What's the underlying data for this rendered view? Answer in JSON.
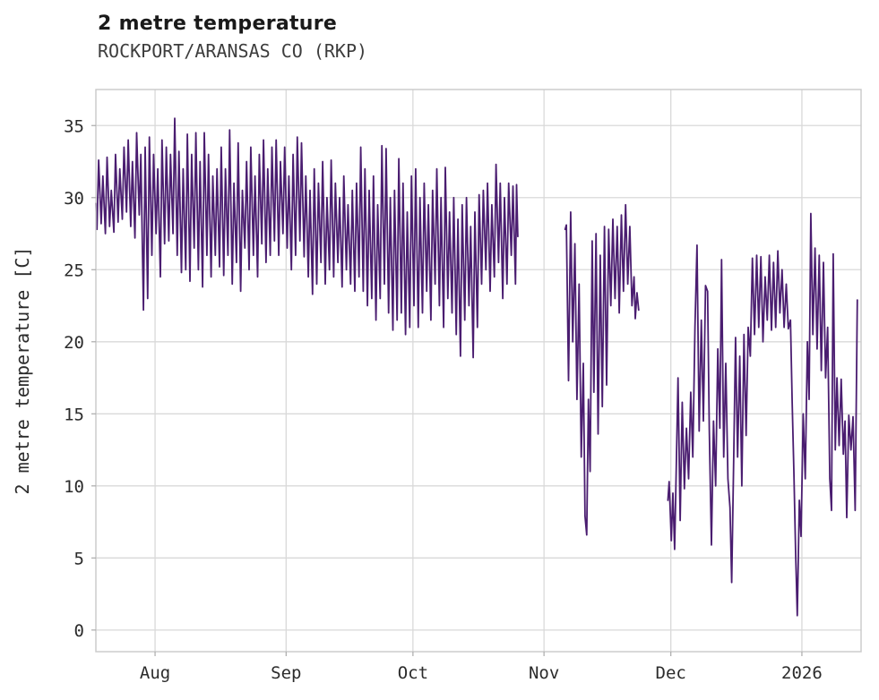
{
  "header": {
    "title": "2 metre temperature",
    "subtitle": "ROCKPORT/ARANSAS CO (RKP)"
  },
  "chart_data": {
    "type": "line",
    "title": "2 metre temperature",
    "subtitle": "ROCKPORT/ARANSAS CO (RKP)",
    "xlabel": "",
    "ylabel": "2 metre temperature [C]",
    "line_color": "#4a1d70",
    "grid": true,
    "grid_color": "#d9d9d9",
    "border_color": "#c9c9c9",
    "ylim": [
      -1.5,
      37.5
    ],
    "yticks": [
      0,
      5,
      10,
      15,
      20,
      25,
      30,
      35
    ],
    "xlim_days": [
      0,
      181
    ],
    "x_unit_note": "x values are days from left edge of plotted range (mid-July)",
    "xticks": [
      {
        "day": 14,
        "label": "Aug"
      },
      {
        "day": 45,
        "label": "Sep"
      },
      {
        "day": 75,
        "label": "Oct"
      },
      {
        "day": 106,
        "label": "Nov"
      },
      {
        "day": 136,
        "label": "Dec"
      },
      {
        "day": 167,
        "label": "2026"
      }
    ],
    "legend": null,
    "segments": [
      [
        [
          0.0,
          29.6
        ],
        [
          0.25,
          27.8
        ],
        [
          0.65,
          32.6
        ],
        [
          1.25,
          28.2
        ],
        [
          1.65,
          31.5
        ],
        [
          2.25,
          27.5
        ],
        [
          2.65,
          32.8
        ],
        [
          3.25,
          28.0
        ],
        [
          3.65,
          30.5
        ],
        [
          4.25,
          27.6
        ],
        [
          4.65,
          33.0
        ],
        [
          5.25,
          28.3
        ],
        [
          5.65,
          32.0
        ],
        [
          6.25,
          28.5
        ],
        [
          6.65,
          33.5
        ],
        [
          7.25,
          29.0
        ],
        [
          7.65,
          34.0
        ],
        [
          8.25,
          28.0
        ],
        [
          8.65,
          32.5
        ],
        [
          9.25,
          27.2
        ],
        [
          9.65,
          34.5
        ],
        [
          10.25,
          28.8
        ],
        [
          10.65,
          33.0
        ],
        [
          11.25,
          22.2
        ],
        [
          11.65,
          33.5
        ],
        [
          12.25,
          23.0
        ],
        [
          12.65,
          34.2
        ],
        [
          13.25,
          26.0
        ],
        [
          13.65,
          33.0
        ],
        [
          14.25,
          27.5
        ],
        [
          14.65,
          32.0
        ],
        [
          15.25,
          24.5
        ],
        [
          15.65,
          34.0
        ],
        [
          16.25,
          26.8
        ],
        [
          16.65,
          33.5
        ],
        [
          17.25,
          27.0
        ],
        [
          17.65,
          33.0
        ],
        [
          18.25,
          27.5
        ],
        [
          18.65,
          35.5
        ],
        [
          19.25,
          26.0
        ],
        [
          19.65,
          33.2
        ],
        [
          20.25,
          24.8
        ],
        [
          20.65,
          32.0
        ],
        [
          21.25,
          25.0
        ],
        [
          21.65,
          34.4
        ],
        [
          22.25,
          24.2
        ],
        [
          22.65,
          33.0
        ],
        [
          23.25,
          26.5
        ],
        [
          23.65,
          34.5
        ],
        [
          24.25,
          25.0
        ],
        [
          24.65,
          32.5
        ],
        [
          25.25,
          23.8
        ],
        [
          25.65,
          34.5
        ],
        [
          26.25,
          26.0
        ],
        [
          26.65,
          33.0
        ],
        [
          27.25,
          24.5
        ],
        [
          27.65,
          31.5
        ],
        [
          28.25,
          26.0
        ],
        [
          28.65,
          32.0
        ],
        [
          29.25,
          25.2
        ],
        [
          29.65,
          33.5
        ],
        [
          30.25,
          24.6
        ],
        [
          30.65,
          32.0
        ],
        [
          31.25,
          26.0
        ],
        [
          31.65,
          34.7
        ],
        [
          32.25,
          24.0
        ],
        [
          32.65,
          31.0
        ],
        [
          33.25,
          25.5
        ],
        [
          33.65,
          33.8
        ],
        [
          34.25,
          23.5
        ],
        [
          34.65,
          30.5
        ],
        [
          35.25,
          26.5
        ],
        [
          35.65,
          32.5
        ],
        [
          36.25,
          25.0
        ],
        [
          36.65,
          33.5
        ],
        [
          37.25,
          26.0
        ],
        [
          37.65,
          31.5
        ],
        [
          38.25,
          24.5
        ],
        [
          38.65,
          33.0
        ],
        [
          39.25,
          26.8
        ],
        [
          39.65,
          34.0
        ],
        [
          40.25,
          25.5
        ],
        [
          40.65,
          32.0
        ],
        [
          41.25,
          26.0
        ],
        [
          41.65,
          33.5
        ],
        [
          42.25,
          27.0
        ],
        [
          42.65,
          34.0
        ],
        [
          43.25,
          26.0
        ],
        [
          43.65,
          32.5
        ],
        [
          44.25,
          27.5
        ],
        [
          44.65,
          33.5
        ],
        [
          45.25,
          26.5
        ],
        [
          45.65,
          31.5
        ],
        [
          46.25,
          25.0
        ],
        [
          46.65,
          33.0
        ],
        [
          47.25,
          26.0
        ],
        [
          47.65,
          34.2
        ],
        [
          48.25,
          27.0
        ],
        [
          48.65,
          33.8
        ],
        [
          49.25,
          25.9
        ],
        [
          49.65,
          31.5
        ],
        [
          50.25,
          24.5
        ],
        [
          50.65,
          30.5
        ],
        [
          51.25,
          23.3
        ],
        [
          51.65,
          32.0
        ],
        [
          52.25,
          24.0
        ],
        [
          52.65,
          31.0
        ],
        [
          53.25,
          25.5
        ],
        [
          53.65,
          32.5
        ],
        [
          54.25,
          24.0
        ],
        [
          54.65,
          30.0
        ],
        [
          55.25,
          25.0
        ],
        [
          55.65,
          32.6
        ],
        [
          56.25,
          24.5
        ],
        [
          56.65,
          31.0
        ],
        [
          57.25,
          25.5
        ],
        [
          57.65,
          30.0
        ],
        [
          58.25,
          23.8
        ],
        [
          58.65,
          31.5
        ],
        [
          59.25,
          25.0
        ],
        [
          59.65,
          29.5
        ],
        [
          60.25,
          24.0
        ],
        [
          60.65,
          30.5
        ],
        [
          61.25,
          23.5
        ],
        [
          61.65,
          31.0
        ],
        [
          62.25,
          24.5
        ],
        [
          62.65,
          33.5
        ],
        [
          63.25,
          23.5
        ],
        [
          63.65,
          32.0
        ],
        [
          64.25,
          22.5
        ],
        [
          64.65,
          30.5
        ],
        [
          65.25,
          23.0
        ],
        [
          65.65,
          31.5
        ],
        [
          66.25,
          21.5
        ],
        [
          66.65,
          29.5
        ],
        [
          67.25,
          23.0
        ],
        [
          67.65,
          33.6
        ],
        [
          68.25,
          24.0
        ],
        [
          68.65,
          33.4
        ],
        [
          69.25,
          22.0
        ],
        [
          69.65,
          30.0
        ],
        [
          70.25,
          20.8
        ],
        [
          70.65,
          30.5
        ],
        [
          71.25,
          21.5
        ],
        [
          71.65,
          32.7
        ],
        [
          72.25,
          22.0
        ],
        [
          72.65,
          31.0
        ],
        [
          73.25,
          20.5
        ],
        [
          73.65,
          29.0
        ],
        [
          74.25,
          21.0
        ],
        [
          74.65,
          31.5
        ],
        [
          75.25,
          22.5
        ],
        [
          75.65,
          32.0
        ],
        [
          76.25,
          21.0
        ],
        [
          76.65,
          30.0
        ],
        [
          77.25,
          22.0
        ],
        [
          77.65,
          31.0
        ],
        [
          78.25,
          23.5
        ],
        [
          78.65,
          29.5
        ],
        [
          79.25,
          21.5
        ],
        [
          79.65,
          30.5
        ],
        [
          80.25,
          24.0
        ],
        [
          80.65,
          32.0
        ],
        [
          81.25,
          22.5
        ],
        [
          81.65,
          30.0
        ],
        [
          82.25,
          21.0
        ],
        [
          82.65,
          32.1
        ],
        [
          83.25,
          23.0
        ],
        [
          83.65,
          29.0
        ],
        [
          84.25,
          22.0
        ],
        [
          84.65,
          30.0
        ],
        [
          85.25,
          20.5
        ],
        [
          85.65,
          28.5
        ],
        [
          86.25,
          19.0
        ],
        [
          86.65,
          29.5
        ],
        [
          87.25,
          21.5
        ],
        [
          87.65,
          30.0
        ],
        [
          88.25,
          22.5
        ],
        [
          88.65,
          28.0
        ],
        [
          89.25,
          18.9
        ],
        [
          89.65,
          29.0
        ],
        [
          90.25,
          21.0
        ],
        [
          90.65,
          30.2
        ],
        [
          91.25,
          24.0
        ],
        [
          91.65,
          30.5
        ],
        [
          92.25,
          25.0
        ],
        [
          92.65,
          31.0
        ],
        [
          93.25,
          23.5
        ],
        [
          93.65,
          29.5
        ],
        [
          94.25,
          24.5
        ],
        [
          94.65,
          32.3
        ],
        [
          95.25,
          25.5
        ],
        [
          95.65,
          31.0
        ],
        [
          96.25,
          23.0
        ],
        [
          96.65,
          30.0
        ],
        [
          97.25,
          24.0
        ],
        [
          97.65,
          31.0
        ],
        [
          98.25,
          26.0
        ],
        [
          98.65,
          30.8
        ],
        [
          99.25,
          24.0
        ],
        [
          99.5,
          30.9
        ],
        [
          99.8,
          27.3
        ]
      ],
      [
        [
          111.0,
          27.8
        ],
        [
          111.3,
          28.1
        ],
        [
          111.8,
          17.3
        ],
        [
          112.3,
          29.0
        ],
        [
          112.8,
          20.0
        ],
        [
          113.3,
          26.8
        ],
        [
          113.8,
          16.0
        ],
        [
          114.3,
          24.0
        ],
        [
          114.8,
          12.0
        ],
        [
          115.3,
          18.5
        ],
        [
          115.7,
          7.9
        ],
        [
          116.1,
          6.6
        ],
        [
          116.5,
          16.0
        ],
        [
          116.9,
          11.0
        ],
        [
          117.4,
          27.0
        ],
        [
          117.8,
          16.5
        ],
        [
          118.3,
          27.5
        ],
        [
          118.8,
          13.6
        ],
        [
          119.3,
          26.0
        ],
        [
          119.8,
          15.5
        ],
        [
          120.3,
          28.0
        ],
        [
          120.8,
          17.0
        ],
        [
          121.3,
          27.8
        ],
        [
          121.8,
          22.5
        ],
        [
          122.3,
          28.5
        ],
        [
          122.8,
          23.0
        ],
        [
          123.3,
          28.0
        ],
        [
          123.8,
          22.0
        ],
        [
          124.3,
          28.8
        ],
        [
          124.8,
          23.5
        ],
        [
          125.3,
          29.5
        ],
        [
          125.8,
          24.0
        ],
        [
          126.3,
          28.0
        ],
        [
          126.8,
          22.5
        ],
        [
          127.3,
          24.5
        ],
        [
          127.6,
          21.6
        ],
        [
          128.0,
          23.4
        ],
        [
          128.4,
          22.2
        ]
      ],
      [
        [
          135.3,
          9.0
        ],
        [
          135.6,
          10.3
        ],
        [
          136.1,
          6.2
        ],
        [
          136.5,
          9.5
        ],
        [
          136.9,
          5.6
        ],
        [
          137.4,
          13.0
        ],
        [
          137.7,
          17.5
        ],
        [
          138.2,
          7.6
        ],
        [
          138.7,
          15.8
        ],
        [
          139.2,
          9.8
        ],
        [
          139.7,
          14.0
        ],
        [
          140.2,
          10.5
        ],
        [
          140.7,
          16.5
        ],
        [
          141.2,
          12.0
        ],
        [
          141.7,
          21.0
        ],
        [
          142.2,
          26.7
        ],
        [
          142.7,
          13.8
        ],
        [
          143.2,
          21.5
        ],
        [
          143.7,
          14.5
        ],
        [
          144.2,
          23.9
        ],
        [
          144.7,
          23.5
        ],
        [
          145.1,
          13.9
        ],
        [
          145.6,
          5.9
        ],
        [
          146.1,
          14.5
        ],
        [
          146.6,
          10.0
        ],
        [
          147.1,
          19.5
        ],
        [
          147.6,
          14.0
        ],
        [
          148.0,
          25.7
        ],
        [
          148.5,
          12.0
        ],
        [
          149.0,
          18.5
        ],
        [
          149.5,
          10.5
        ],
        [
          150.0,
          8.5
        ],
        [
          150.4,
          3.3
        ],
        [
          150.9,
          12.5
        ],
        [
          151.3,
          20.3
        ],
        [
          151.8,
          12.0
        ],
        [
          152.3,
          19.0
        ],
        [
          152.8,
          10.0
        ],
        [
          153.3,
          20.5
        ],
        [
          153.8,
          13.5
        ],
        [
          154.3,
          21.0
        ],
        [
          154.8,
          19.0
        ],
        [
          155.3,
          25.8
        ],
        [
          155.8,
          20.5
        ],
        [
          156.3,
          26.0
        ],
        [
          156.8,
          21.0
        ],
        [
          157.3,
          25.9
        ],
        [
          157.8,
          20.0
        ],
        [
          158.3,
          24.5
        ],
        [
          158.8,
          21.5
        ],
        [
          159.3,
          26.0
        ],
        [
          159.8,
          20.8
        ],
        [
          160.3,
          25.5
        ],
        [
          160.8,
          21.0
        ],
        [
          161.3,
          26.3
        ],
        [
          161.8,
          22.0
        ],
        [
          162.3,
          25.0
        ],
        [
          162.8,
          21.0
        ],
        [
          163.3,
          24.0
        ],
        [
          163.8,
          20.9
        ],
        [
          164.3,
          21.5
        ],
        [
          164.7,
          15.8
        ],
        [
          165.1,
          11.0
        ],
        [
          165.5,
          5.5
        ],
        [
          165.9,
          1.0
        ],
        [
          166.4,
          9.0
        ],
        [
          166.8,
          6.5
        ],
        [
          167.3,
          15.0
        ],
        [
          167.8,
          10.5
        ],
        [
          168.3,
          20.0
        ],
        [
          168.7,
          16.0
        ],
        [
          169.1,
          28.9
        ],
        [
          169.6,
          20.5
        ],
        [
          170.1,
          26.5
        ],
        [
          170.6,
          19.5
        ],
        [
          171.1,
          26.0
        ],
        [
          171.6,
          18.0
        ],
        [
          172.1,
          25.5
        ],
        [
          172.6,
          17.5
        ],
        [
          173.1,
          21.0
        ],
        [
          173.6,
          10.5
        ],
        [
          174.0,
          8.3
        ],
        [
          174.4,
          26.1
        ],
        [
          174.9,
          12.5
        ],
        [
          175.3,
          17.5
        ],
        [
          175.8,
          12.8
        ],
        [
          176.3,
          17.4
        ],
        [
          176.8,
          12.2
        ],
        [
          177.2,
          14.5
        ],
        [
          177.6,
          7.8
        ],
        [
          178.1,
          14.9
        ],
        [
          178.6,
          12.5
        ],
        [
          179.1,
          14.8
        ],
        [
          179.6,
          8.3
        ],
        [
          180.1,
          22.9
        ]
      ]
    ]
  }
}
